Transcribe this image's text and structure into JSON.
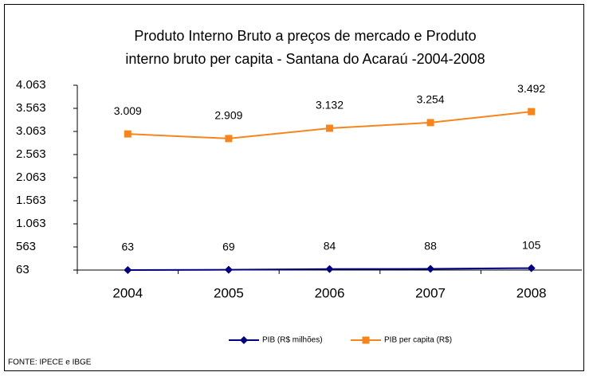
{
  "chart_data": {
    "type": "line",
    "title": [
      "Produto Interno Bruto a preços de mercado  e   Produto",
      "interno bruto per capita  - Santana do  Acaraú -2004-2008"
    ],
    "categories": [
      "2004",
      "2005",
      "2006",
      "2007",
      "2008"
    ],
    "series": [
      {
        "name": "PIB (R$ milhões)",
        "color": "#000080",
        "marker": "diamond",
        "values": [
          63,
          69,
          84,
          88,
          105
        ]
      },
      {
        "name": "PIB per capita (R$)",
        "color": "#f7851e",
        "marker": "square",
        "values": [
          3009,
          2909,
          3132,
          3254,
          3492
        ],
        "value_labels": [
          "3.009",
          "2.909",
          "3.132",
          "3.254",
          "3.492"
        ]
      }
    ],
    "ylim": [
      63,
      4063
    ],
    "yticks": [
      63,
      563,
      {
        "value": 1063,
        "label": "1.063"
      },
      {
        "value": 1563,
        "label": "1.563"
      },
      {
        "value": 2063,
        "label": "2.063"
      },
      {
        "value": 2563,
        "label": "2.563"
      },
      {
        "value": 3063,
        "label": "3.063"
      },
      {
        "value": 3563,
        "label": "3.563"
      },
      {
        "value": 4063,
        "label": "4.063"
      }
    ],
    "source": "FONTE: IPECE e IBGE",
    "legend": "bottom"
  }
}
